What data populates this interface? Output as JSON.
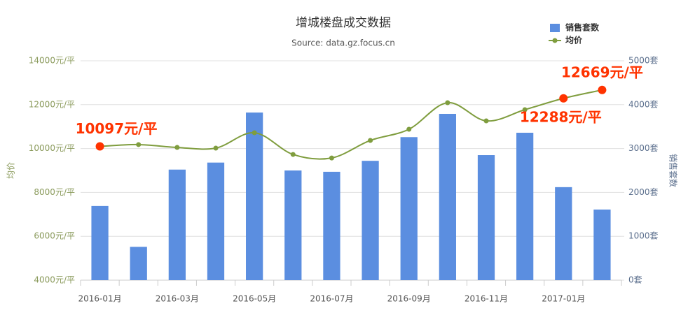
{
  "chart_data": {
    "type": "bar-line",
    "title": "增城楼盘成交数据",
    "subtitle": "Source: data.gz.focus.cn",
    "y_label": "均价",
    "y2_label": "销售套数",
    "categories": [
      "2016-01月",
      null,
      "2016-03月",
      null,
      "2016-05月",
      null,
      "2016-07月",
      null,
      "2016-09月",
      null,
      "2016-11月",
      null,
      "2017-01月",
      null
    ],
    "series": [
      {
        "name": "销售套数",
        "type": "bar",
        "axis": "y2",
        "color": "#5b8ee0",
        "values": [
          1690,
          760,
          2520,
          2680,
          3820,
          2500,
          2470,
          2720,
          3260,
          3790,
          2850,
          3360,
          2120,
          1610
        ]
      },
      {
        "name": "均价",
        "type": "line",
        "axis": "y",
        "color": "#7f9d3e",
        "values": [
          10097,
          10180,
          10050,
          10020,
          10720,
          9730,
          9570,
          10370,
          10880,
          12090,
          11260,
          11770,
          12288,
          12669
        ],
        "value_labels": [
          "10097元/平",
          null,
          null,
          null,
          null,
          null,
          null,
          null,
          null,
          null,
          null,
          null,
          "12288元/平",
          "12669元/平"
        ],
        "label_color": "#ff3300"
      }
    ],
    "ylim": [
      4000,
      14000
    ],
    "yticks": [
      {
        "value": 4000,
        "label": "4000元/平"
      },
      {
        "value": 6000,
        "label": "6000元/平"
      },
      {
        "value": 8000,
        "label": "8000元/平"
      },
      {
        "value": 10000,
        "label": "10000元/平"
      },
      {
        "value": 12000,
        "label": "12000元/平"
      },
      {
        "value": 14000,
        "label": "14000元/平"
      }
    ],
    "y2lim": [
      0,
      5000
    ],
    "y2ticks": [
      {
        "value": 0,
        "label": "0套"
      },
      {
        "value": 1000,
        "label": "1000套"
      },
      {
        "value": 2000,
        "label": "2000套"
      },
      {
        "value": 3000,
        "label": "3000套"
      },
      {
        "value": 4000,
        "label": "4000套"
      },
      {
        "value": 5000,
        "label": "5000套"
      }
    ],
    "grid": true,
    "legend": "top-right"
  }
}
